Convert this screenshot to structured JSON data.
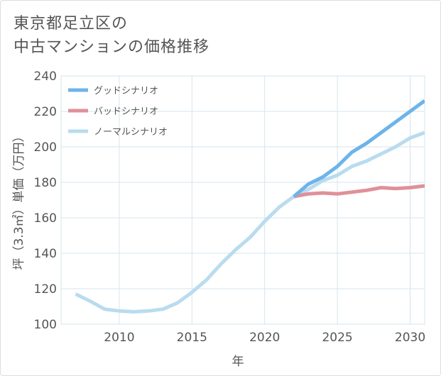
{
  "title_line1": "東京都足立区の",
  "title_line2": "中古マンションの価格推移",
  "chart_data": {
    "type": "line",
    "xlabel": "年",
    "ylabel": "坪（3.3㎡）単価（万円）",
    "xlim": [
      2006,
      2031
    ],
    "ylim": [
      100,
      240
    ],
    "xticks": [
      2010,
      2015,
      2020,
      2025,
      2030
    ],
    "yticks": [
      100,
      120,
      140,
      160,
      180,
      200,
      220,
      240
    ],
    "grid": true,
    "legend_position": "top-left",
    "series": [
      {
        "name": "グッドシナリオ",
        "color": "#6cb4ea",
        "x": [
          2022,
          2023,
          2024,
          2025,
          2026,
          2027,
          2028,
          2029,
          2030,
          2031
        ],
        "y": [
          172,
          179,
          183,
          189,
          197,
          202,
          208,
          214,
          220,
          226
        ]
      },
      {
        "name": "バッドシナリオ",
        "color": "#e0909a",
        "x": [
          2022,
          2023,
          2024,
          2025,
          2026,
          2027,
          2028,
          2029,
          2030,
          2031
        ],
        "y": [
          172,
          173.5,
          174,
          173.5,
          174.5,
          175.5,
          177,
          176.5,
          177,
          178
        ]
      },
      {
        "name": "ノーマルシナリオ",
        "color": "#b9dcee",
        "x": [
          2007,
          2008,
          2009,
          2010,
          2011,
          2012,
          2013,
          2014,
          2015,
          2016,
          2017,
          2018,
          2019,
          2020,
          2021,
          2022,
          2023,
          2024,
          2025,
          2026,
          2027,
          2028,
          2029,
          2030,
          2031
        ],
        "y": [
          117,
          113,
          108.5,
          107.5,
          107,
          107.5,
          108.5,
          112,
          118,
          125,
          134,
          142,
          149,
          158,
          166,
          172,
          176,
          181,
          184,
          189,
          192,
          196,
          200,
          205,
          208
        ]
      }
    ]
  }
}
